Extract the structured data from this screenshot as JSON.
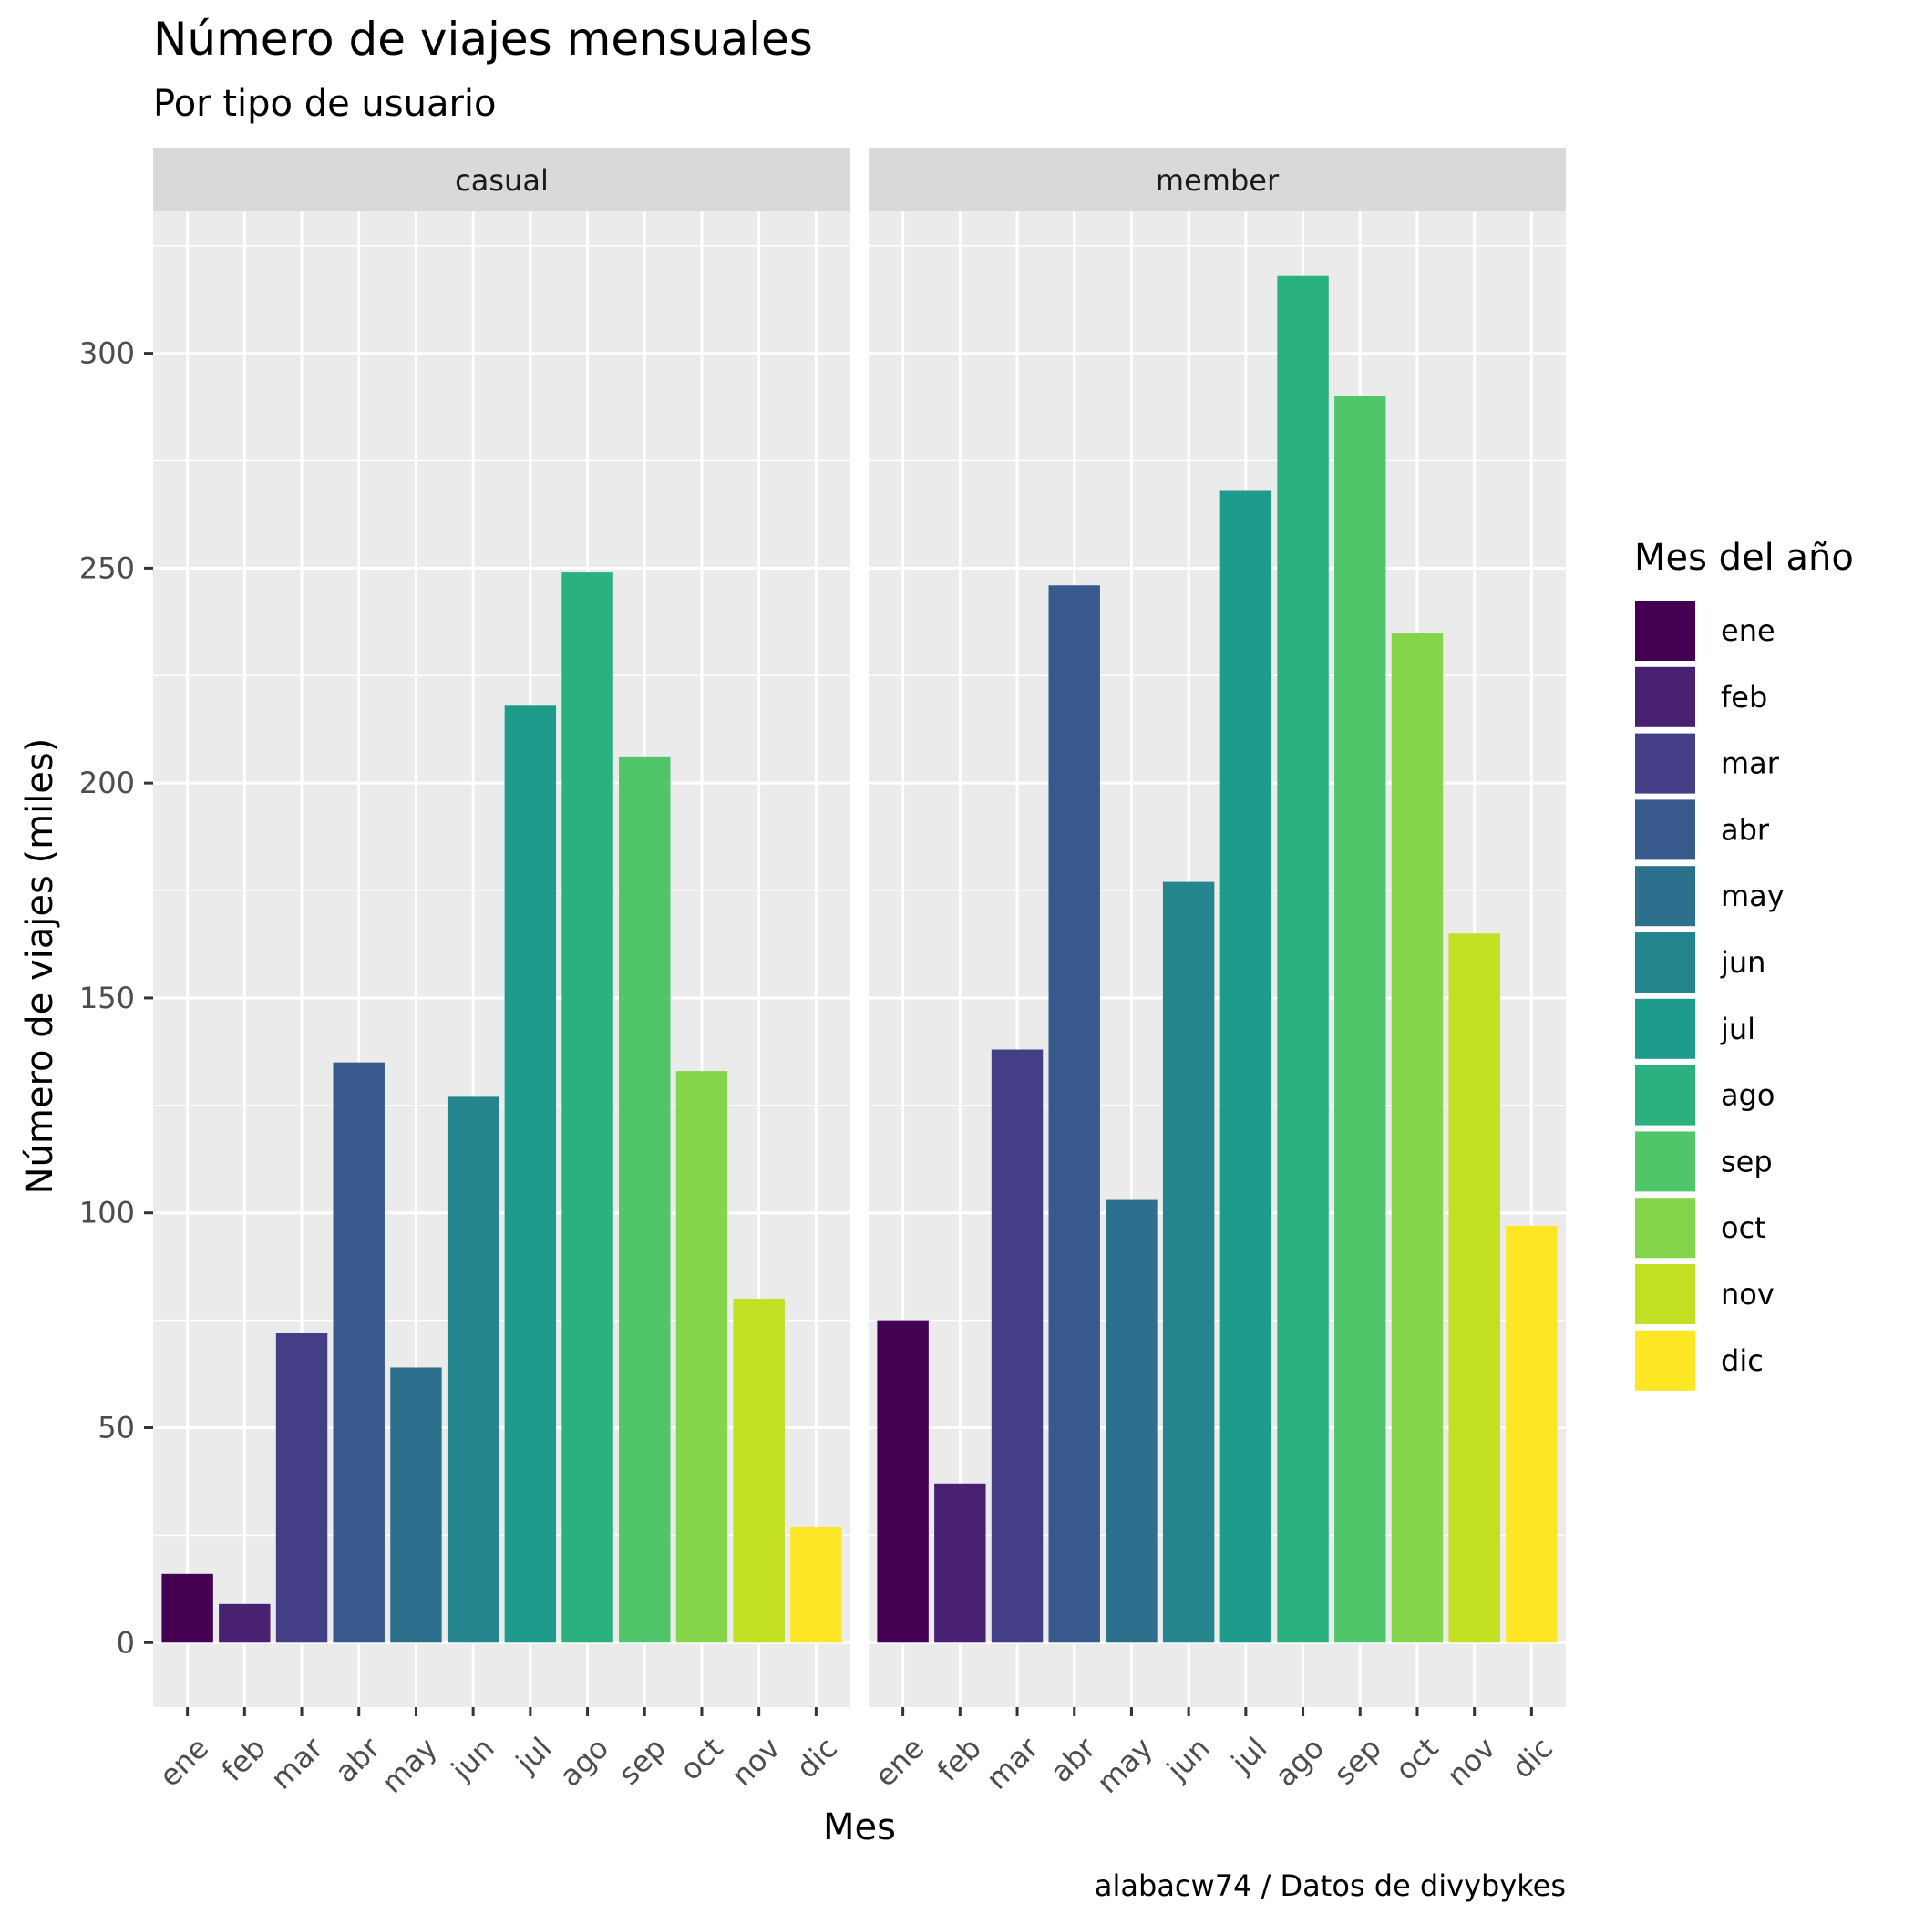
{
  "chart_data": {
    "type": "bar",
    "title": "Número de viajes mensuales",
    "subtitle": "Por tipo de usuario",
    "xlabel": "Mes",
    "ylabel": "Número de viajes (miles)",
    "caption": "alabacw74 / Datos de divybykes",
    "categories": [
      "ene",
      "feb",
      "mar",
      "abr",
      "may",
      "jun",
      "jul",
      "ago",
      "sep",
      "oct",
      "nov",
      "dic"
    ],
    "ylim": [
      -15,
      333
    ],
    "yticks": [
      0,
      50,
      100,
      150,
      200,
      250,
      300
    ],
    "ytick_labels": [
      "0",
      "50",
      "100",
      "150",
      "200",
      "250",
      "300"
    ],
    "grid": true,
    "facets": [
      {
        "name": "casual",
        "values": [
          16,
          9,
          72,
          135,
          64,
          127,
          218,
          249,
          206,
          133,
          80,
          27
        ]
      },
      {
        "name": "member",
        "values": [
          75,
          37,
          138,
          246,
          103,
          177,
          268,
          318,
          290,
          235,
          165,
          97
        ]
      }
    ],
    "legend": {
      "title": "Mes del año",
      "placement": "right",
      "labels": [
        "ene",
        "feb",
        "mar",
        "abr",
        "may",
        "jun",
        "jul",
        "ago",
        "sep",
        "oct",
        "nov",
        "dic"
      ]
    },
    "colors": [
      "#440154",
      "#482173",
      "#433E85",
      "#38598C",
      "#2D708E",
      "#25858E",
      "#1E9B8A",
      "#2BB07F",
      "#51C56A",
      "#85D54A",
      "#C2DF23",
      "#FDE725"
    ]
  }
}
